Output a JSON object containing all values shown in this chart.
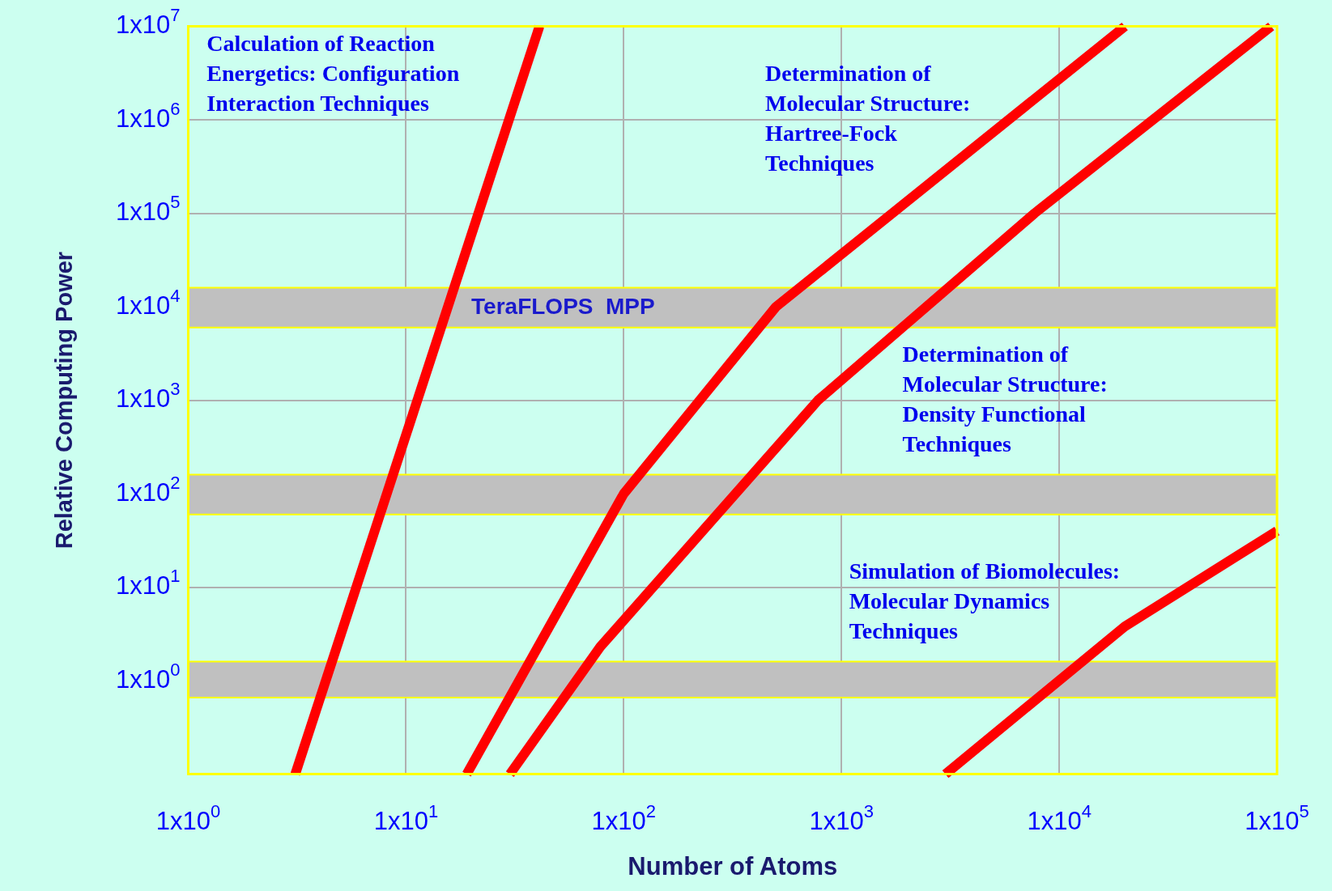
{
  "chart_data": {
    "type": "line",
    "xlabel": "Number of Atoms",
    "ylabel": "Relative Computing Power",
    "log": "xy",
    "grid": true,
    "legend": false,
    "marker": "none",
    "line_style": "solid",
    "xlim": [
      1,
      100000
    ],
    "xticks": [
      {
        "value": 1,
        "label": "1x10$^{0}$"
      },
      {
        "value": 10,
        "label": "1x10$^{1}$"
      },
      {
        "value": 100,
        "label": "1x10$^{2}$"
      },
      {
        "value": 1000,
        "label": "1x10$^{3}$"
      },
      {
        "value": 10000,
        "label": "1x10$^{4}$"
      },
      {
        "value": 100000,
        "label": "1x10$^{5}$"
      }
    ],
    "ylim": [
      0.1,
      10000000
    ],
    "yticks": [
      {
        "value": 1,
        "label": "1x10$^{0}$"
      },
      {
        "value": 10,
        "label": "1x10$^{1}$"
      },
      {
        "value": 100,
        "label": "1x10$^{2}$"
      },
      {
        "value": 1000,
        "label": "1x10$^{3}$"
      },
      {
        "value": 10000,
        "label": "1x10$^{4}$"
      },
      {
        "value": 100000,
        "label": "1x10$^{5}$"
      },
      {
        "value": 1000000,
        "label": "1x10$^{6}$"
      },
      {
        "value": 10000000,
        "label": "1x10$^{7}$"
      }
    ],
    "series": [
      {
        "color": "#ff0000",
        "x": [
          3.1,
          41
        ],
        "values": [
          0.1,
          10000000
        ]
      },
      {
        "color": "#ff0000",
        "x": [
          19,
          100,
          500,
          20000
        ],
        "values": [
          0.1,
          100,
          10000,
          10000000
        ]
      },
      {
        "color": "#ff0000",
        "x": [
          30,
          78,
          780,
          7700,
          94000
        ],
        "values": [
          0.1,
          2.3,
          1000,
          100000,
          10000000
        ]
      },
      {
        "color": "#ff0000",
        "x": [
          3000,
          20000,
          100000
        ],
        "values": [
          0.1,
          3.8,
          40
        ]
      }
    ],
    "bands": [
      {
        "axis": "y",
        "from": 6000,
        "to": 16000,
        "label": "TeraFLOPS  MPP",
        "color": "#c0c0c0"
      },
      {
        "axis": "y",
        "from": 60,
        "to": 160,
        "color": "#c0c0c0"
      },
      {
        "axis": "y",
        "from": 0.66,
        "to": 1.6,
        "color": "#c0c0c0"
      }
    ],
    "annotations": [
      "Calculation of Reaction\nEnergetics: Configuration\nInteraction Techniques",
      "Determination of\nMolecular Structure:\nHartree-Fock\nTechniques",
      "Determination of\nMolecular Structure:\nDensity Functional\nTechniques",
      "Simulation of Biomolecules:\nMolecular Dynamics\nTechniques"
    ]
  }
}
